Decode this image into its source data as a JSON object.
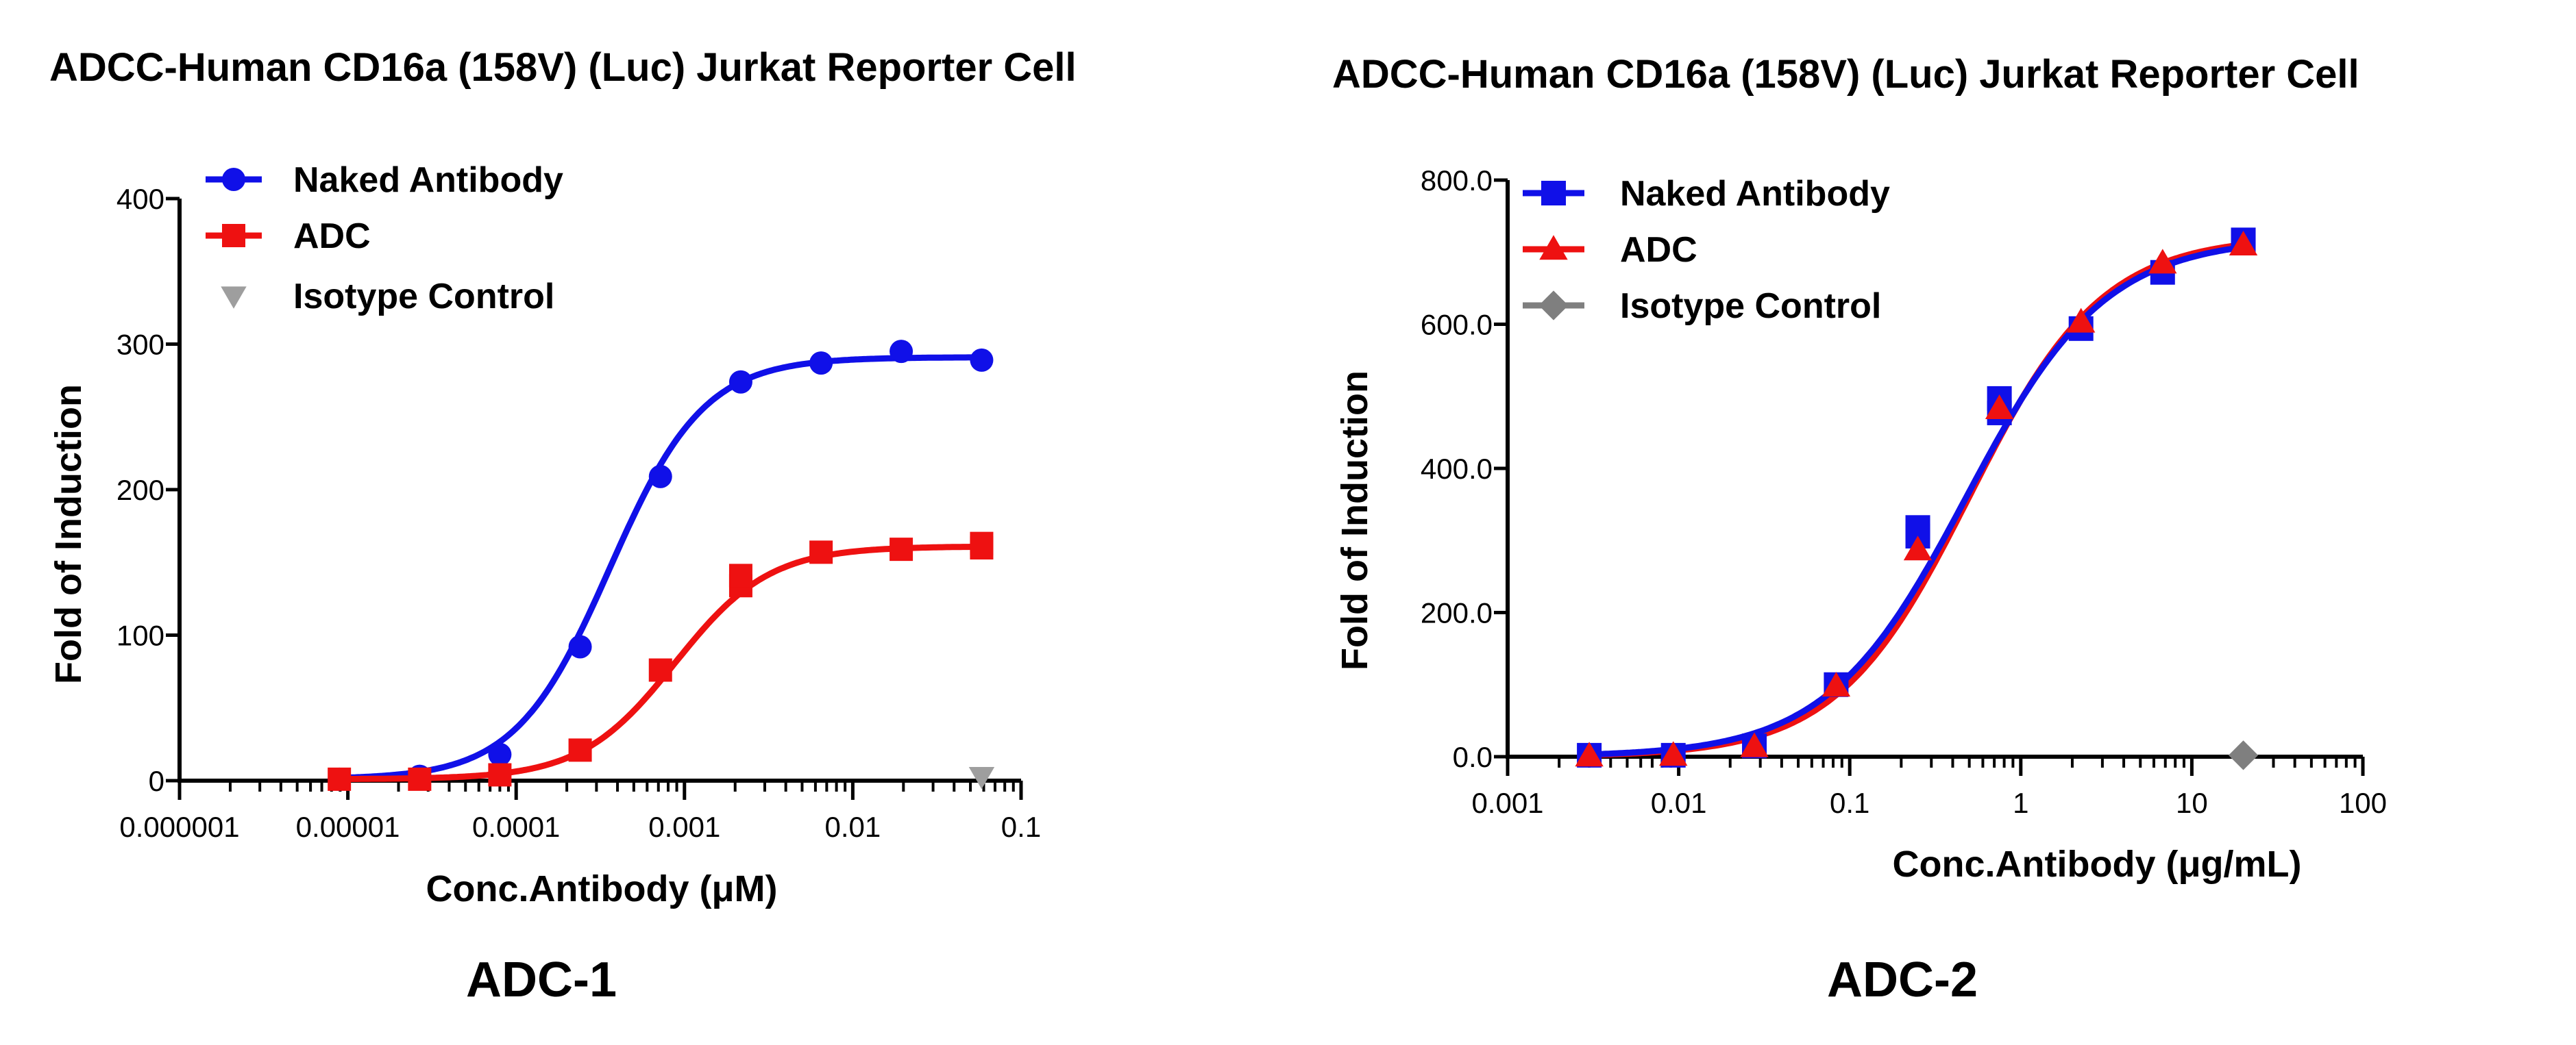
{
  "colors": {
    "naked": "#1010e8",
    "adc": "#ee1111",
    "isotype_left": "#9e9e9e",
    "isotype_right": "#7f7f7f"
  },
  "chart_data": [
    {
      "type": "scatter",
      "title": "ADCC-Human CD16a (158V) (Luc) Jurkat Reporter Cell",
      "caption": "ADC-1",
      "xlabel": "Conc.Antibody (μM)",
      "ylabel": "Fold of Induction",
      "xscale": "log",
      "xlim": [
        1e-06,
        0.1
      ],
      "ylim": [
        0,
        400
      ],
      "x_tick_labels": [
        "0.000001",
        "0.00001",
        "0.0001",
        "0.001",
        "0.01",
        "0.1"
      ],
      "y_tick_labels": [
        "0",
        "100",
        "200",
        "300",
        "400"
      ],
      "legend_position": "top-left",
      "series": [
        {
          "name": "Naked Antibody",
          "marker": "circle",
          "color": "#1010e8",
          "x": [
            8.9e-06,
            2.67e-05,
            8e-05,
            0.00024,
            0.00072,
            0.00216,
            0.00648,
            0.0194,
            0.0583
          ],
          "y": [
            1,
            3,
            18,
            92,
            209,
            274,
            287,
            295,
            289
          ],
          "curve": {
            "bottom": 1,
            "top": 291,
            "ec50": 0.00036,
            "hill": 1.55
          }
        },
        {
          "name": "ADC",
          "marker": "square",
          "color": "#ee1111",
          "x": [
            8.9e-06,
            2.67e-05,
            8e-05,
            0.00024,
            0.00072,
            0.00216,
            0.00216,
            0.00648,
            0.0194,
            0.0583,
            0.0583
          ],
          "y": [
            1,
            1,
            4,
            21,
            76,
            134,
            141,
            157,
            159,
            160,
            163
          ],
          "curve": {
            "bottom": 1,
            "top": 161,
            "ec50": 0.00088,
            "hill": 1.55
          }
        },
        {
          "name": "Isotype Control",
          "marker": "triangle-down",
          "color": "#9e9e9e",
          "x": [
            0.0583
          ],
          "y": [
            3
          ]
        }
      ]
    },
    {
      "type": "scatter",
      "title": "ADCC-Human CD16a (158V) (Luc) Jurkat Reporter Cell",
      "caption": "ADC-2",
      "xlabel": "Conc.Antibody (μg/mL)",
      "ylabel": "Fold of Induction",
      "xscale": "log",
      "xlim": [
        0.001,
        100
      ],
      "ylim": [
        0,
        800
      ],
      "x_tick_labels": [
        "0.001",
        "0.01",
        "0.1",
        "1",
        "10",
        "100"
      ],
      "y_tick_labels": [
        "0.0",
        "200.0",
        "400.0",
        "600.0",
        "800.0"
      ],
      "legend_position": "top-left",
      "series": [
        {
          "name": "Naked Antibody",
          "marker": "square",
          "color": "#1010e8",
          "x": [
            0.003,
            0.0093,
            0.0277,
            0.0833,
            0.25,
            0.25,
            0.75,
            0.75,
            2.25,
            6.75,
            20
          ],
          "y": [
            2,
            2,
            15,
            100,
            318,
            306,
            497,
            477,
            594,
            672,
            717
          ],
          "curve": {
            "bottom": 0,
            "top": 720,
            "ec50": 0.48,
            "hill": 1.07
          }
        },
        {
          "name": "ADC",
          "marker": "triangle-up",
          "color": "#ee1111",
          "x": [
            0.003,
            0.0093,
            0.0277,
            0.0833,
            0.25,
            0.75,
            2.25,
            6.75,
            20
          ],
          "y": [
            1,
            2,
            14,
            98,
            287,
            483,
            603,
            685,
            710
          ],
          "curve": {
            "bottom": 0,
            "top": 722,
            "ec50": 0.5,
            "hill": 1.12
          }
        },
        {
          "name": "Isotype Control",
          "marker": "diamond",
          "color": "#7f7f7f",
          "x": [
            20
          ],
          "y": [
            2
          ]
        }
      ]
    }
  ]
}
